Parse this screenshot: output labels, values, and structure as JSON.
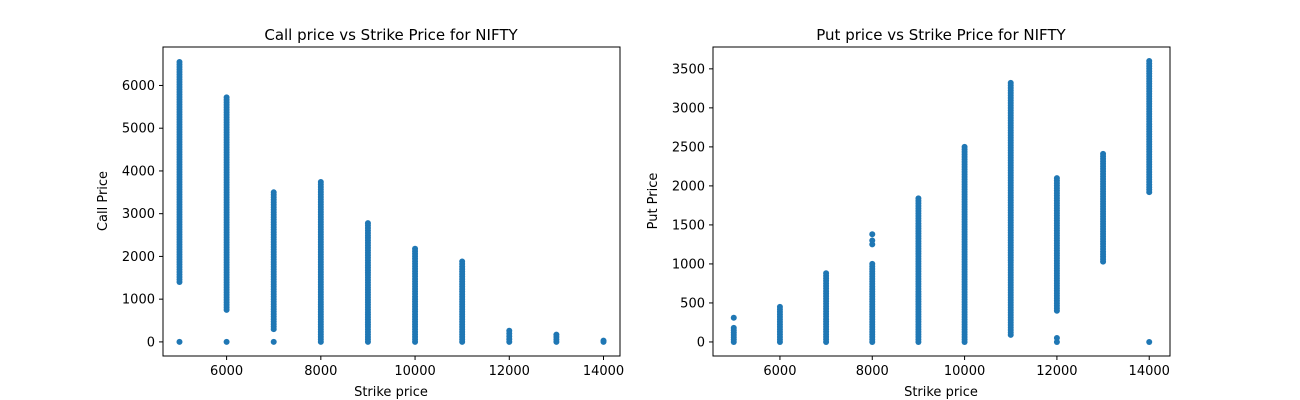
{
  "chart_data": [
    {
      "type": "scatter",
      "title": "Call price vs Strike Price for NIFTY",
      "xlabel": "Strike price",
      "ylabel": "Call Price",
      "xlim": [
        4650,
        14350
      ],
      "ylim": [
        -330,
        6900
      ],
      "xticks": [
        6000,
        8000,
        10000,
        12000,
        14000
      ],
      "yticks": [
        0,
        1000,
        2000,
        3000,
        4000,
        5000,
        6000
      ],
      "marker_color": "#1f77b4",
      "grid": false,
      "columns": [
        {
          "x": 5000,
          "y_min": 1400,
          "y_max": 6550,
          "outliers": [
            0
          ]
        },
        {
          "x": 6000,
          "y_min": 750,
          "y_max": 5720,
          "outliers": [
            0
          ]
        },
        {
          "x": 7000,
          "y_min": 300,
          "y_max": 3500,
          "outliers": [
            0
          ]
        },
        {
          "x": 8000,
          "y_min": 0,
          "y_max": 3740,
          "outliers": []
        },
        {
          "x": 9000,
          "y_min": 0,
          "y_max": 2780,
          "outliers": []
        },
        {
          "x": 10000,
          "y_min": 0,
          "y_max": 2180,
          "outliers": []
        },
        {
          "x": 11000,
          "y_min": 0,
          "y_max": 1880,
          "outliers": []
        },
        {
          "x": 12000,
          "y_min": 0,
          "y_max": 260,
          "outliers": []
        },
        {
          "x": 13000,
          "y_min": 0,
          "y_max": 170,
          "outliers": []
        },
        {
          "x": 14000,
          "y_min": 0,
          "y_max": 30,
          "outliers": []
        }
      ]
    },
    {
      "type": "scatter",
      "title": "Put price vs Strike Price for NIFTY",
      "xlabel": "Strike price",
      "ylabel": "Put Price",
      "xlim": [
        4550,
        14450
      ],
      "ylim": [
        -180,
        3780
      ],
      "xticks": [
        6000,
        8000,
        10000,
        12000,
        14000
      ],
      "yticks": [
        0,
        500,
        1000,
        1500,
        2000,
        2500,
        3000,
        3500
      ],
      "marker_color": "#1f77b4",
      "grid": false,
      "columns": [
        {
          "x": 5000,
          "y_min": 0,
          "y_max": 180,
          "outliers": [
            310
          ]
        },
        {
          "x": 6000,
          "y_min": 0,
          "y_max": 450,
          "outliers": []
        },
        {
          "x": 7000,
          "y_min": 0,
          "y_max": 880,
          "outliers": []
        },
        {
          "x": 8000,
          "y_min": 0,
          "y_max": 1000,
          "outliers": [
            1250,
            1300,
            1380
          ]
        },
        {
          "x": 9000,
          "y_min": 0,
          "y_max": 1840,
          "outliers": []
        },
        {
          "x": 10000,
          "y_min": 0,
          "y_max": 2500,
          "outliers": []
        },
        {
          "x": 11000,
          "y_min": 90,
          "y_max": 3320,
          "outliers": []
        },
        {
          "x": 12000,
          "y_min": 400,
          "y_max": 2100,
          "outliers": [
            0,
            50
          ]
        },
        {
          "x": 13000,
          "y_min": 1030,
          "y_max": 2410,
          "outliers": []
        },
        {
          "x": 14000,
          "y_min": 1920,
          "y_max": 3600,
          "outliers": [
            0
          ]
        }
      ]
    }
  ]
}
